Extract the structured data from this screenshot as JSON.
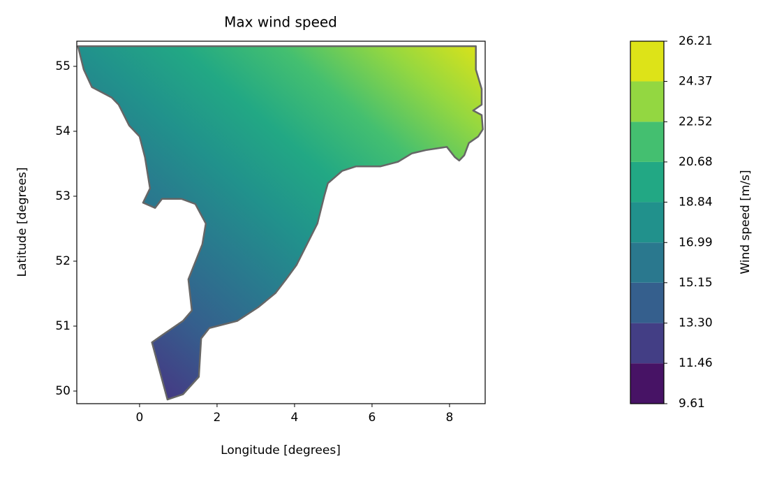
{
  "chart_data": {
    "type": "contour",
    "title": "Max wind speed",
    "x_label": "Longitude [degrees]",
    "y_label": "Latitude [degrees]",
    "xlim": [
      -1.62,
      8.92
    ],
    "ylim": [
      49.806,
      55.387
    ],
    "xticks": [
      0,
      2,
      4,
      6,
      8
    ],
    "yticks": [
      50,
      51,
      52,
      53,
      54,
      55
    ],
    "boundary": {
      "lon": [
        -1.59,
        8.68,
        8.68,
        8.83,
        8.83,
        8.61,
        8.83,
        8.86,
        8.74,
        8.5,
        8.38,
        8.25,
        8.14,
        7.93,
        7.39,
        7.03,
        6.67,
        6.22,
        5.59,
        5.23,
        4.86,
        4.77,
        4.59,
        4.32,
        4.05,
        3.78,
        3.51,
        3.06,
        2.52,
        1.8,
        1.59,
        1.53,
        1.12,
        0.72,
        0.32,
        0.58,
        1.12,
        1.35,
        1.26,
        1.44,
        1.62,
        1.71,
        1.44,
        1.08,
        0.58,
        0.4,
        0.09,
        0.27,
        0.14,
        0.0,
        -0.27,
        -0.54,
        -0.72,
        -1.23,
        -1.44
      ],
      "lat": [
        55.31,
        55.31,
        54.95,
        54.65,
        54.41,
        54.32,
        54.25,
        54.03,
        53.92,
        53.82,
        53.63,
        53.55,
        53.6,
        53.76,
        53.71,
        53.66,
        53.53,
        53.46,
        53.46,
        53.39,
        53.2,
        53.01,
        52.58,
        52.26,
        51.94,
        51.72,
        51.51,
        51.29,
        51.08,
        50.97,
        50.81,
        50.22,
        49.95,
        49.87,
        50.75,
        50.86,
        51.08,
        51.24,
        51.72,
        51.99,
        52.26,
        52.58,
        52.88,
        52.96,
        52.96,
        52.82,
        52.9,
        53.12,
        53.6,
        53.92,
        54.09,
        54.41,
        54.52,
        54.68,
        54.95
      ]
    },
    "colorbar": {
      "label": "Wind speed [m/s]",
      "levels": [
        9.61,
        11.46,
        {
          "value": 13.3,
          "label": "13.30"
        },
        15.15,
        16.99,
        18.84,
        20.68,
        22.52,
        24.37,
        26.21
      ],
      "colors": [
        "#471365",
        "#433e85",
        "#355f8d",
        "#2a788e",
        "#21918c",
        "#22a884",
        "#44bf70",
        "#93d741",
        "#dde318"
      ]
    }
  }
}
